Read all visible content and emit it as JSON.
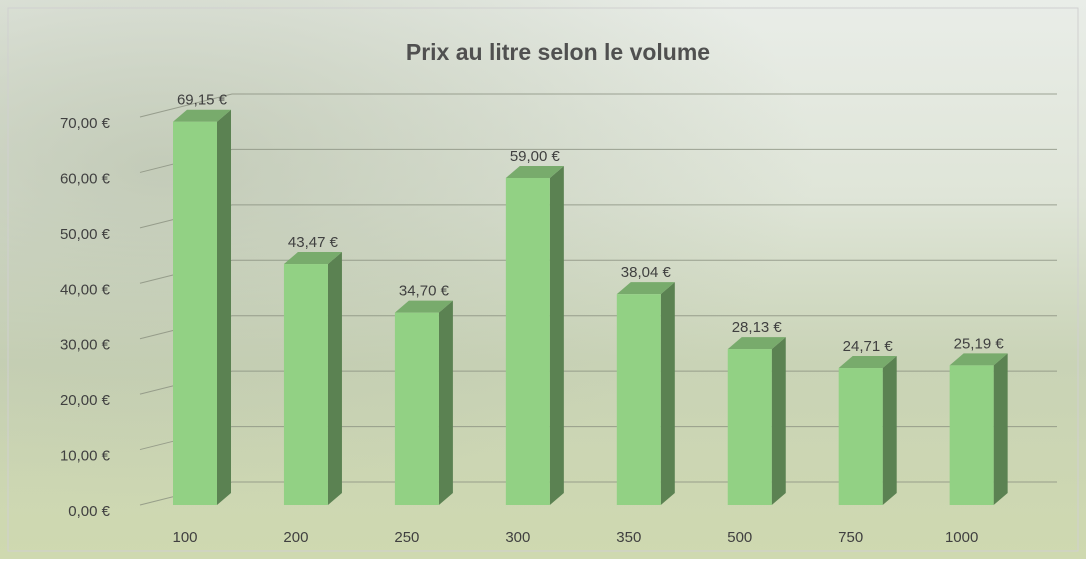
{
  "chart_data": {
    "type": "bar3d",
    "title": "Prix au litre selon le volume",
    "categories": [
      "100",
      "200",
      "250",
      "300",
      "350",
      "500",
      "750",
      "1000"
    ],
    "values": [
      69.15,
      43.47,
      34.7,
      59.0,
      38.04,
      28.13,
      24.71,
      25.19
    ],
    "value_labels": [
      "69,15 €",
      "43,47 €",
      "34,70 €",
      "59,00 €",
      "38,04 €",
      "28,13 €",
      "24,71 €",
      "25,19 €"
    ],
    "color": "#92d184",
    "ylim": [
      0,
      70
    ],
    "yticks": [
      {
        "value": 0,
        "label": "0,00 €"
      },
      {
        "value": 10,
        "label": "10,00 €"
      },
      {
        "value": 20,
        "label": "20,00 €"
      },
      {
        "value": 30,
        "label": "30,00 €"
      },
      {
        "value": 40,
        "label": "40,00 €"
      },
      {
        "value": 50,
        "label": "50,00 €"
      },
      {
        "value": 60,
        "label": "60,00 €"
      },
      {
        "value": 70,
        "label": "70,00 €"
      }
    ],
    "grid": true
  }
}
